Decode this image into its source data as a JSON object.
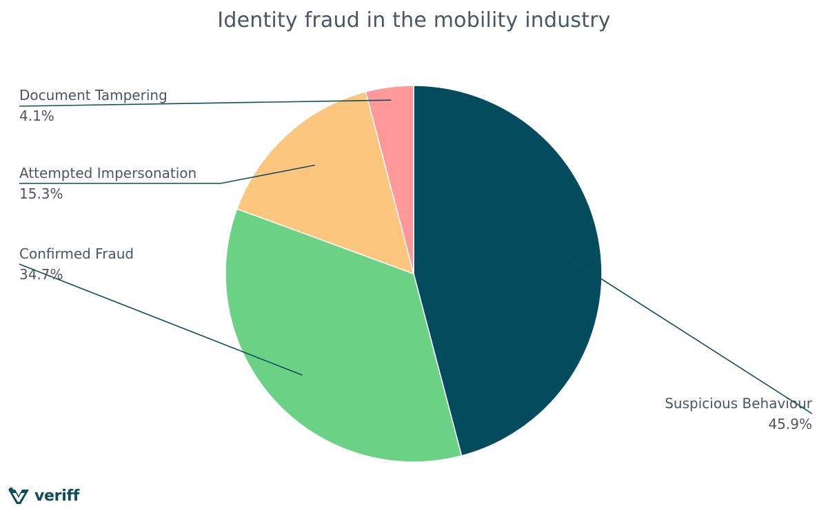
{
  "chart_data": {
    "type": "pie",
    "title": "Identity fraud in the mobility industry",
    "slices": [
      {
        "label": "Suspicious Behaviour",
        "value": 45.9,
        "value_text": "45.9%",
        "color": "#024c5d"
      },
      {
        "label": "Confirmed Fraud",
        "value": 34.7,
        "value_text": "34.7%",
        "color": "#6bd285"
      },
      {
        "label": "Attempted Impersonation",
        "value": 15.3,
        "value_text": "15.3%",
        "color": "#fdc67f"
      },
      {
        "label": "Document Tampering",
        "value": 4.1,
        "value_text": "4.1%",
        "color": "#ff9898"
      }
    ],
    "start_angle": "12 o'clock",
    "direction": "clockwise",
    "legend": "none",
    "label_style": "leader lines"
  },
  "brand": {
    "name": "veriff",
    "logo_icon": "veriff-logo-icon",
    "color": "#0f4c5c"
  }
}
